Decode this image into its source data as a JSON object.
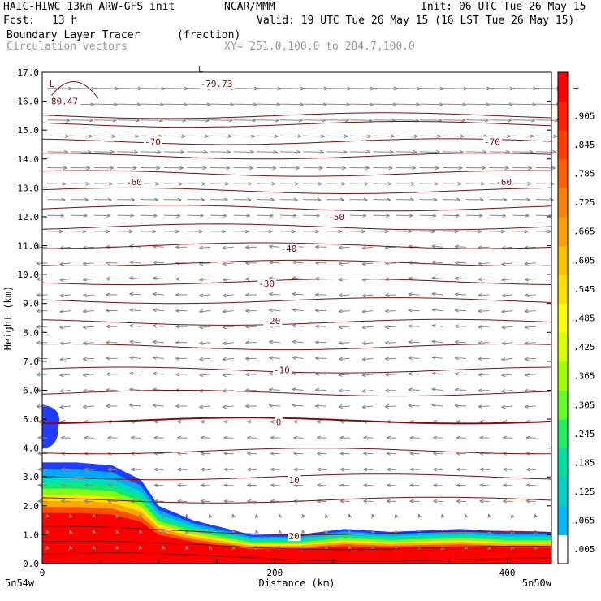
{
  "header": {
    "title_left": "HAIC-HIWC 13km ARW-GFS init",
    "org": "NCAR/MMM",
    "init": "Init: 06 UTC Tue 26 May 15",
    "fcst_label": "Fcst:",
    "fcst_value": "13 h",
    "valid": "Valid: 19 UTC Tue 26 May 15 (16 LST Tue 26 May 15)",
    "field1_name": "Boundary Layer Tracer",
    "field1_units": "(fraction)",
    "field2_name": "Circulation vectors",
    "xy_range": "XY= 251.0,100.0 to 284.7,100.0"
  },
  "chart_data": {
    "type": "contour",
    "xlabel": "Distance (km)",
    "ylabel": "Height (km)",
    "xlim": [
      0,
      438
    ],
    "ylim": [
      0,
      17
    ],
    "x_ticks": [
      {
        "value": 0,
        "label": "0"
      },
      {
        "value": 200,
        "label": "200"
      },
      {
        "value": 400,
        "label": "400"
      }
    ],
    "y_ticks": [
      "0.0",
      "1.0",
      "2.0",
      "3.0",
      "4.0",
      "5.0",
      "6.0",
      "7.0",
      "8.0",
      "9.0",
      "10.0",
      "11.0",
      "12.0",
      "13.0",
      "14.0",
      "15.0",
      "16.0",
      "17.0"
    ],
    "endpoint_labels": {
      "left": "5n54w",
      "right": "5n50w"
    },
    "colorbar": {
      "labels": [
        ".005",
        ".065",
        ".125",
        ".185",
        ".245",
        ".305",
        ".365",
        ".425",
        ".485",
        ".545",
        ".605",
        ".665",
        ".725",
        ".785",
        ".845",
        ".905",
        "–"
      ],
      "colors": [
        "#ffffff",
        "#00b8ff",
        "#00d0c8",
        "#00e0a0",
        "#20f060",
        "#60ff20",
        "#a0ff00",
        "#d8ff00",
        "#ffff00",
        "#ffe000",
        "#ffc000",
        "#ffa000",
        "#ff8000",
        "#ff6000",
        "#ff4000",
        "#ff2000",
        "#ff0000"
      ]
    },
    "temperature_contours": [
      {
        "value": -80.47,
        "label": "-80.47",
        "x": 3,
        "y": 16.0
      },
      {
        "value": -79.73,
        "label": "-79.73",
        "x": 136,
        "y": 16.6
      },
      {
        "value": -70,
        "label": "-70",
        "x": 88,
        "y": 14.6
      },
      {
        "value": -70,
        "label": "-70",
        "x": 380,
        "y": 14.6
      },
      {
        "value": -60,
        "label": "-60",
        "x": 72,
        "y": 13.2
      },
      {
        "value": -60,
        "label": "-60",
        "x": 390,
        "y": 13.2
      },
      {
        "value": -50,
        "label": "-50",
        "x": 246,
        "y": 12.0
      },
      {
        "value": -40,
        "label": "-40",
        "x": 205,
        "y": 10.9
      },
      {
        "value": -30,
        "label": "-30",
        "x": 186,
        "y": 9.7
      },
      {
        "value": -20,
        "label": "-20",
        "x": 191,
        "y": 8.4
      },
      {
        "value": -10,
        "label": "-10",
        "x": 199,
        "y": 6.7
      },
      {
        "value": 0,
        "label": "0",
        "x": 201,
        "y": 4.9
      },
      {
        "value": 10,
        "label": "10",
        "x": 212,
        "y": 2.9
      },
      {
        "value": 20,
        "label": "20",
        "x": 212,
        "y": 0.95
      }
    ],
    "tracer_top": [
      {
        "x": 0,
        "top": 3.5
      },
      {
        "x": 30,
        "top": 3.5
      },
      {
        "x": 60,
        "top": 3.4
      },
      {
        "x": 85,
        "top": 2.9
      },
      {
        "x": 100,
        "top": 2.0
      },
      {
        "x": 130,
        "top": 1.5
      },
      {
        "x": 160,
        "top": 1.2
      },
      {
        "x": 180,
        "top": 1.0
      },
      {
        "x": 220,
        "top": 1.0
      },
      {
        "x": 260,
        "top": 1.2
      },
      {
        "x": 300,
        "top": 1.1
      },
      {
        "x": 360,
        "top": 1.2
      },
      {
        "x": 400,
        "top": 1.1
      },
      {
        "x": 438,
        "top": 1.1
      }
    ],
    "tracer_blob": {
      "x0": 0,
      "x1": 14,
      "y_bottom": 4.0,
      "y_top": 5.5
    }
  }
}
